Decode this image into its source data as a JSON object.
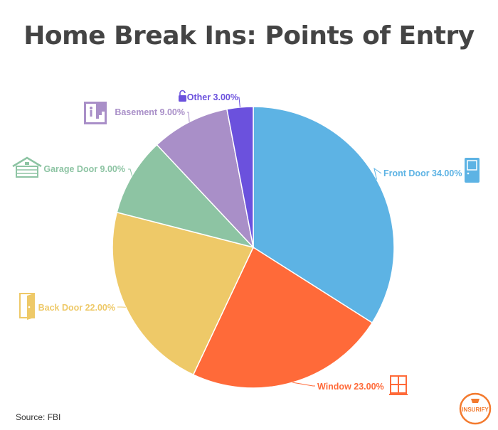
{
  "title": "Home Break Ins: Points of Entry",
  "source": "Source: FBI",
  "brand": "INSURIFY",
  "colors": {
    "title": "#444444",
    "brand": "#F37A2E",
    "slices": [
      "#5DB3E4",
      "#FF6A39",
      "#EEC968",
      "#8DC4A3",
      "#A98FC8",
      "#6B51DD"
    ]
  },
  "chart_data": {
    "type": "pie",
    "title": "Home Break Ins: Points of Entry",
    "categories": [
      "Front Door",
      "Window",
      "Back Door",
      "Garage Door",
      "Basement",
      "Other"
    ],
    "values": [
      34,
      23,
      22,
      9,
      9,
      3
    ],
    "unit": "%",
    "labels": [
      "Front Door 34.00%",
      "Window 23.00%",
      "Back Door 22.00%",
      "Garage Door 9.00%",
      "Basement 9.00%",
      "Other 3.00%"
    ],
    "icons": [
      "door-icon",
      "window-icon",
      "back-door-icon",
      "garage-icon",
      "basement-icon",
      "lock-icon"
    ],
    "start_angle_deg": 0,
    "direction": "clockwise"
  }
}
